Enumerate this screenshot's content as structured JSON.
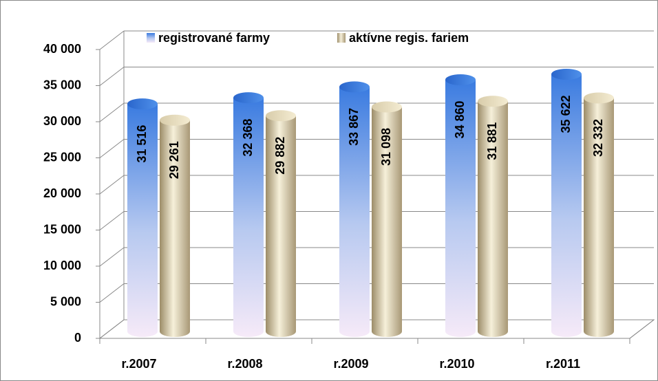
{
  "chart_data": {
    "type": "bar",
    "categories": [
      "r.2007",
      "r.2008",
      "r.2009",
      "r.2010",
      "r.2011"
    ],
    "series": [
      {
        "name": "registrované farmy",
        "color": "#3d7fe0",
        "values": [
          31516,
          32368,
          33867,
          34860,
          35622
        ],
        "value_labels": [
          "31 516",
          "32 368",
          "33 867",
          "34 860",
          "35 622"
        ]
      },
      {
        "name": "aktívne regis. fariem",
        "color": "#d9cfb0",
        "values": [
          29261,
          29882,
          31098,
          31881,
          32332
        ],
        "value_labels": [
          "29 261",
          "29 882",
          "31 098",
          "31 881",
          "32 332"
        ]
      }
    ],
    "ylim": [
      0,
      40000
    ],
    "yticks": [
      0,
      {
        "value": 5000,
        "label": "5 000"
      },
      {
        "value": 10000,
        "label": "10 000"
      },
      {
        "value": 15000,
        "label": "15 000"
      },
      {
        "value": 20000,
        "label": "20 000"
      },
      {
        "value": 25000,
        "label": "25 000"
      },
      {
        "value": 30000,
        "label": "30 000"
      },
      {
        "value": 35000,
        "label": "35 000"
      },
      {
        "value": 40000,
        "label": "40 000"
      }
    ],
    "grid": true,
    "legend": "top"
  }
}
